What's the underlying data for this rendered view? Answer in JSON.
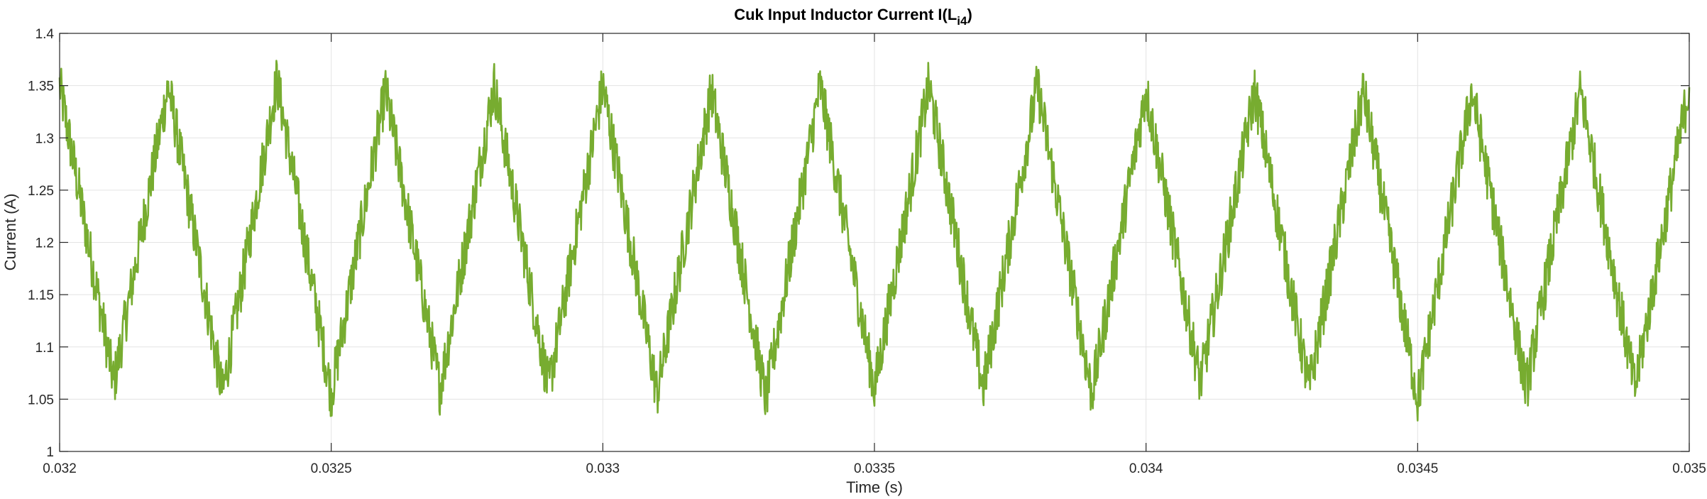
{
  "chart_data": {
    "type": "line",
    "title": "Cuk Input Inductor Current I(L",
    "title_sub": "i4",
    "title_end": ")",
    "xlabel": "Time (s)",
    "ylabel": "Current (A)",
    "xlim": [
      0.032,
      0.035
    ],
    "ylim": [
      1,
      1.4
    ],
    "xticks": [
      "0.032",
      "0.0325",
      "0.033",
      "0.0335",
      "0.034",
      "0.0345",
      "0.035"
    ],
    "yticks": [
      "1",
      "1.05",
      "1.1",
      "1.15",
      "1.2",
      "1.25",
      "1.3",
      "1.35",
      "1.4"
    ],
    "grid": true,
    "series": [
      {
        "color": "#77AC30",
        "x": [
          0.032,
          0.0322,
          0.0324,
          0.0326,
          0.0328,
          0.033,
          0.0332,
          0.0334,
          0.0336,
          0.0338,
          0.034,
          0.0342,
          0.0344,
          0.0346,
          0.0348,
          0.035
        ],
        "y": [
          1.35,
          1.35,
          1.355,
          1.345,
          1.35,
          1.35,
          1.345,
          1.35,
          1.35,
          1.35,
          1.345,
          1.345,
          1.345,
          1.345,
          1.345,
          1.35
        ],
        "x_min": [
          0.0321,
          0.0323,
          0.0325,
          0.0327,
          0.0329,
          0.0331,
          0.0333,
          0.0335,
          0.0337,
          0.0339,
          0.0341,
          0.0343,
          0.0345,
          0.0347,
          0.0349
        ],
        "y_min": [
          1.065,
          1.055,
          1.055,
          1.06,
          1.06,
          1.055,
          1.05,
          1.06,
          1.06,
          1.055,
          1.065,
          1.06,
          1.05,
          1.06,
          1.06
        ],
        "noise_amplitude": 0.025
      }
    ]
  }
}
